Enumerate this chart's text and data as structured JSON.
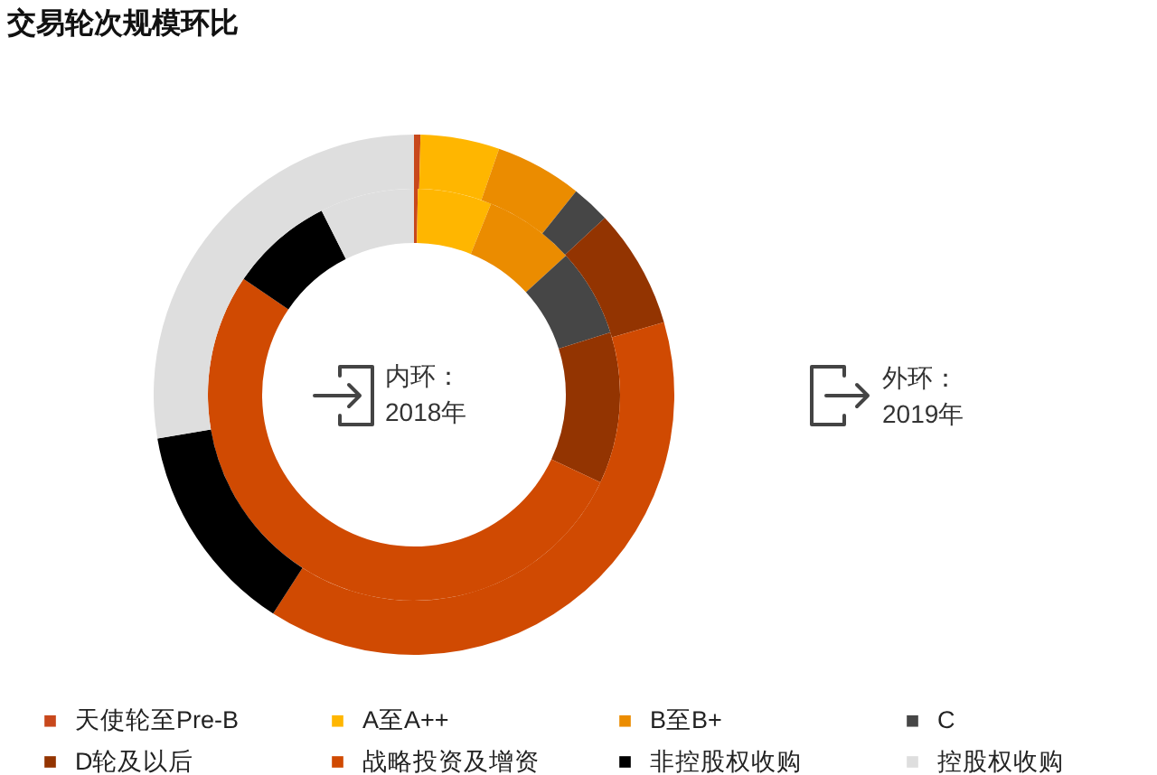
{
  "chart_data": {
    "type": "donut",
    "title": "交易轮次规模环比",
    "categories": [
      "天使轮至Pre-B",
      "A至A++",
      "B至B+",
      "C",
      "D轮及以后",
      "战略投资及增资",
      "非控股权收购",
      "控股权收购"
    ],
    "colors": [
      "#c8481c",
      "#ffb600",
      "#eb8c00",
      "#464646",
      "#933401",
      "#d04a02",
      "#000000",
      "#dedede"
    ],
    "series": [
      {
        "values": [
          0.3,
          5.8,
          7.1,
          6.9,
          11.9,
          52.5,
          8.1,
          7.4
        ]
      },
      {
        "values": [
          0.4,
          4.9,
          5.4,
          2.4,
          7.4,
          38.6,
          13.2,
          27.7
        ]
      }
    ],
    "annotations": [
      "内环：\n2018年",
      "外环：\n2019年"
    ],
    "legend": "bottom"
  }
}
